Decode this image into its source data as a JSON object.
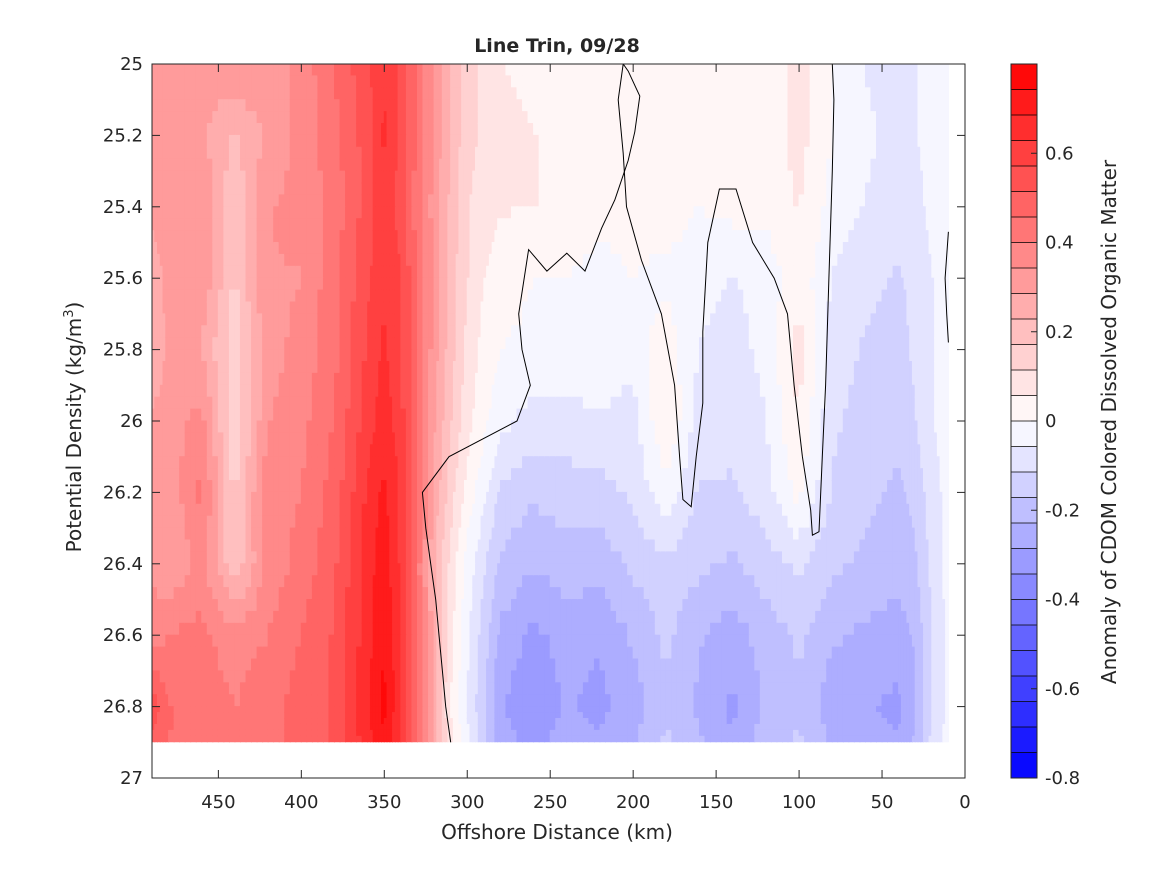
{
  "chart_data": {
    "type": "heatmap",
    "title": "Line Trin, 09/28",
    "xlabel": "Offshore Distance (km)",
    "ylabel_main": "Potential Density (kg/m",
    "ylabel_sup": "3",
    "ylabel_close": ")",
    "xlim": [
      490,
      0
    ],
    "ylim": [
      25,
      27
    ],
    "y_reversed": true,
    "x_reversed": true,
    "xticks": [
      450,
      400,
      350,
      300,
      250,
      200,
      150,
      100,
      50,
      0
    ],
    "xtick_labels": [
      "450",
      "400",
      "350",
      "300",
      "250",
      "200",
      "150",
      "100",
      "50",
      "0"
    ],
    "yticks": [
      25,
      25.2,
      25.4,
      25.6,
      25.8,
      26,
      26.2,
      26.4,
      26.6,
      26.8,
      27
    ],
    "ytick_labels": [
      "25",
      "25.2",
      "25.4",
      "25.6",
      "25.8",
      "26",
      "26.2",
      "26.4",
      "26.6",
      "26.8",
      "27"
    ],
    "grid": false,
    "colorbar": {
      "label": "Anomaly of CDOM Colored Dissolved Organic Matter",
      "range": [
        -0.8,
        0.8
      ],
      "levels": 28,
      "ticks": [
        0.6,
        0.4,
        0.2,
        0,
        -0.2,
        -0.4,
        -0.6,
        -0.8
      ],
      "tick_labels": [
        "0.6",
        "0.4",
        "0.2",
        "0",
        "-0.2",
        "-0.4",
        "-0.6",
        "-0.8"
      ],
      "low_color": "#0000ff",
      "mid_color": "#ffffff",
      "high_color": "#ff0000"
    },
    "data_extent": {
      "x_min": 0,
      "x_max": 490,
      "y_min": 25,
      "y_max": 26.9
    },
    "x_grid": [
      490,
      480,
      460,
      440,
      420,
      400,
      380,
      360,
      350,
      340,
      320,
      310,
      300,
      290,
      280,
      260,
      240,
      220,
      200,
      180,
      160,
      140,
      120,
      100,
      80,
      60,
      40,
      30,
      20,
      10
    ],
    "y_grid": [
      25,
      25.2,
      25.4,
      25.6,
      25.8,
      26,
      26.2,
      26.4,
      26.6,
      26.8,
      26.9
    ],
    "z": [
      [
        0.3,
        0.32,
        0.3,
        0.34,
        0.32,
        0.36,
        0.46,
        0.56,
        0.62,
        0.56,
        0.34,
        0.22,
        0.14,
        0.1,
        0.06,
        0.04,
        0.06,
        0.04,
        0.02,
        0.04,
        0.0,
        0.04,
        0.02,
        0.08,
        0.0,
        -0.06,
        -0.1,
        -0.06,
        -0.04,
        -0.04
      ],
      [
        0.28,
        0.34,
        0.3,
        0.22,
        0.3,
        0.36,
        0.44,
        0.54,
        0.64,
        0.56,
        0.34,
        0.22,
        0.14,
        0.1,
        0.08,
        0.06,
        0.04,
        0.04,
        0.02,
        0.04,
        0.02,
        0.04,
        0.02,
        0.08,
        0.0,
        -0.04,
        -0.08,
        -0.06,
        -0.04,
        -0.04
      ],
      [
        0.3,
        0.32,
        0.34,
        0.18,
        0.34,
        0.36,
        0.42,
        0.54,
        0.62,
        0.54,
        0.32,
        0.22,
        0.12,
        0.08,
        0.06,
        0.06,
        0.04,
        0.02,
        0.02,
        0.04,
        0.0,
        0.02,
        0.02,
        0.06,
        -0.02,
        -0.06,
        -0.1,
        -0.08,
        -0.04,
        -0.04
      ],
      [
        0.26,
        0.3,
        0.34,
        0.16,
        0.34,
        0.34,
        0.44,
        0.56,
        0.62,
        0.58,
        0.34,
        0.2,
        0.12,
        0.06,
        0.04,
        0.0,
        0.0,
        -0.02,
        0.0,
        -0.02,
        -0.04,
        -0.06,
        -0.04,
        0.04,
        -0.06,
        -0.1,
        -0.12,
        -0.1,
        -0.06,
        -0.04
      ],
      [
        0.22,
        0.3,
        0.28,
        0.14,
        0.32,
        0.36,
        0.44,
        0.58,
        0.64,
        0.58,
        0.32,
        0.2,
        0.1,
        0.04,
        0.0,
        -0.02,
        -0.02,
        -0.02,
        -0.04,
        0.04,
        -0.06,
        -0.08,
        -0.04,
        0.08,
        -0.08,
        -0.12,
        -0.14,
        -0.1,
        -0.06,
        -0.04
      ],
      [
        0.3,
        0.32,
        0.36,
        0.12,
        0.34,
        0.38,
        0.46,
        0.6,
        0.66,
        0.6,
        0.3,
        0.18,
        0.08,
        0.02,
        -0.04,
        -0.08,
        -0.08,
        -0.06,
        -0.08,
        0.06,
        -0.08,
        -0.1,
        -0.06,
        0.06,
        -0.1,
        -0.14,
        -0.16,
        -0.12,
        -0.06,
        -0.04
      ],
      [
        0.34,
        0.3,
        0.42,
        0.16,
        0.38,
        0.4,
        0.48,
        0.64,
        0.7,
        0.62,
        0.28,
        0.14,
        0.04,
        -0.04,
        -0.12,
        -0.16,
        -0.14,
        -0.14,
        -0.1,
        -0.02,
        -0.12,
        -0.12,
        -0.08,
        0.02,
        -0.12,
        -0.16,
        -0.18,
        -0.16,
        -0.08,
        -0.04
      ],
      [
        0.34,
        0.28,
        0.36,
        0.18,
        0.36,
        0.42,
        0.5,
        0.66,
        0.72,
        0.62,
        0.24,
        0.1,
        -0.02,
        -0.1,
        -0.18,
        -0.22,
        -0.2,
        -0.2,
        -0.16,
        -0.12,
        -0.16,
        -0.18,
        -0.14,
        -0.1,
        -0.16,
        -0.18,
        -0.2,
        -0.18,
        -0.1,
        -0.04
      ],
      [
        0.36,
        0.4,
        0.42,
        0.36,
        0.4,
        0.46,
        0.52,
        0.66,
        0.74,
        0.64,
        0.26,
        0.08,
        -0.04,
        -0.14,
        -0.24,
        -0.3,
        -0.26,
        -0.28,
        -0.22,
        -0.16,
        -0.22,
        -0.26,
        -0.2,
        -0.16,
        -0.22,
        -0.24,
        -0.26,
        -0.22,
        -0.12,
        -0.04
      ],
      [
        0.56,
        0.46,
        0.44,
        0.4,
        0.44,
        0.48,
        0.52,
        0.68,
        0.76,
        0.64,
        0.26,
        0.06,
        -0.06,
        -0.16,
        -0.28,
        -0.34,
        -0.28,
        -0.3,
        -0.26,
        -0.18,
        -0.24,
        -0.3,
        -0.22,
        -0.18,
        -0.26,
        -0.28,
        -0.3,
        -0.24,
        -0.12,
        -0.04
      ],
      [
        0.5,
        0.46,
        0.42,
        0.4,
        0.44,
        0.48,
        0.52,
        0.66,
        0.74,
        0.62,
        0.26,
        0.08,
        -0.04,
        -0.14,
        -0.26,
        -0.3,
        -0.26,
        -0.28,
        -0.24,
        -0.16,
        -0.22,
        -0.28,
        -0.2,
        -0.16,
        -0.24,
        -0.26,
        -0.28,
        -0.22,
        -0.1,
        -0.04
      ]
    ],
    "zero_contours": [
      [
        [
          310,
          26.9
        ],
        [
          313,
          26.8
        ],
        [
          315,
          26.7
        ],
        [
          317,
          26.6
        ],
        [
          319,
          26.5
        ],
        [
          322,
          26.4
        ],
        [
          325,
          26.3
        ],
        [
          327,
          26.2
        ],
        [
          311,
          26.1
        ],
        [
          270,
          26.0
        ],
        [
          262,
          25.9
        ],
        [
          267,
          25.8
        ],
        [
          269,
          25.7
        ],
        [
          263,
          25.52
        ],
        [
          252,
          25.58
        ],
        [
          240,
          25.53
        ],
        [
          229,
          25.58
        ],
        [
          219,
          25.46
        ],
        [
          211,
          25.38
        ],
        [
          203,
          25.27
        ],
        [
          199,
          25.19
        ],
        [
          196,
          25.09
        ],
        [
          203,
          25.02
        ],
        [
          206,
          25.0
        ]
      ],
      [
        [
          206,
          25.0
        ],
        [
          209,
          25.1
        ],
        [
          206,
          25.25
        ],
        [
          204,
          25.4
        ],
        [
          195,
          25.55
        ],
        [
          183,
          25.7
        ],
        [
          175,
          25.9
        ],
        [
          172,
          26.1
        ],
        [
          170,
          26.22
        ],
        [
          165,
          26.24
        ],
        [
          162,
          26.1
        ],
        [
          158,
          25.95
        ],
        [
          158,
          25.75
        ],
        [
          155,
          25.5
        ],
        [
          148,
          25.35
        ],
        [
          138,
          25.35
        ],
        [
          128,
          25.5
        ],
        [
          115,
          25.6
        ],
        [
          107,
          25.7
        ],
        [
          103,
          25.9
        ],
        [
          98,
          26.1
        ],
        [
          93,
          26.25
        ],
        [
          92,
          26.32
        ],
        [
          88,
          26.31
        ],
        [
          86,
          26.1
        ],
        [
          84,
          25.9
        ],
        [
          82,
          25.6
        ],
        [
          80,
          25.3
        ],
        [
          79,
          25.1
        ],
        [
          80,
          25.0
        ]
      ],
      [
        [
          10,
          25.47
        ],
        [
          12,
          25.6
        ],
        [
          11,
          25.7
        ],
        [
          10,
          25.78
        ]
      ]
    ]
  }
}
